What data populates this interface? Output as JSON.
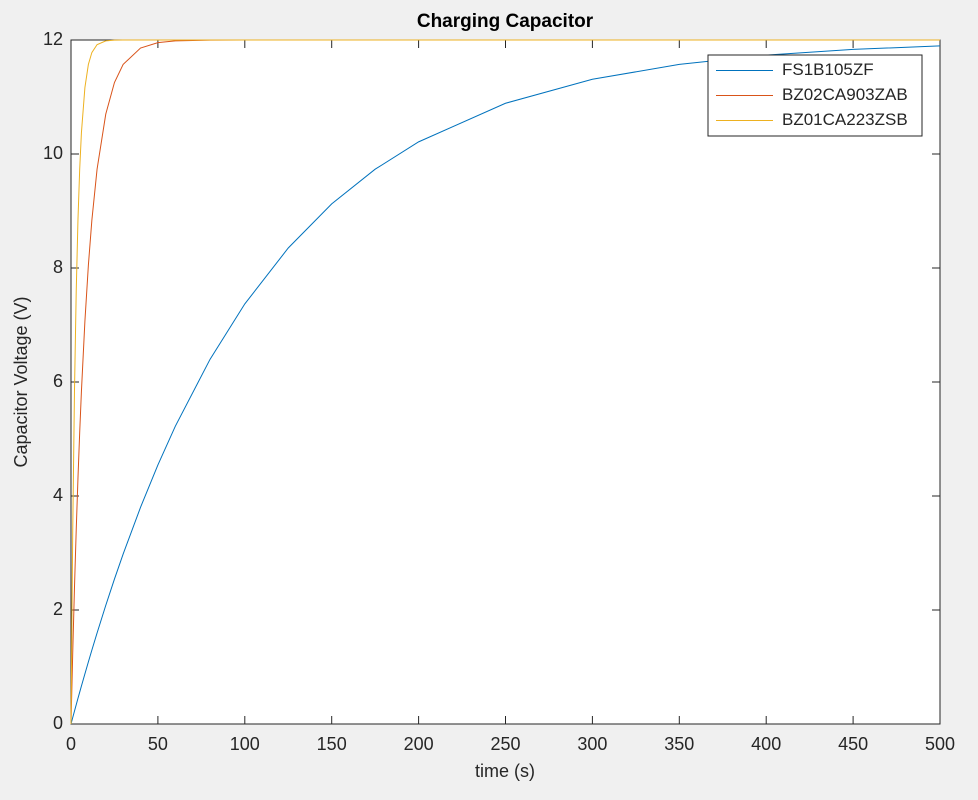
{
  "chart_data": {
    "type": "line",
    "title": "Charging Capacitor",
    "xlabel": "time (s)",
    "ylabel": "Capacitor Voltage (V)",
    "x": [
      0,
      1,
      2,
      3,
      4,
      5,
      6,
      8,
      10,
      12,
      15,
      20,
      25,
      30,
      40,
      50,
      60,
      80,
      100,
      125,
      150,
      175,
      200,
      250,
      300,
      350,
      400,
      450,
      500
    ],
    "series": [
      {
        "name": "FS1B105ZF",
        "color": "#0072bd",
        "values": [
          0,
          0.114,
          0.226,
          0.338,
          0.449,
          0.558,
          0.667,
          0.88,
          1.09,
          1.296,
          1.597,
          2.081,
          2.543,
          2.982,
          3.801,
          4.545,
          5.223,
          6.398,
          7.37,
          8.351,
          9.125,
          9.733,
          10.213,
          10.89,
          11.311,
          11.572,
          11.735,
          11.835,
          11.897
        ]
      },
      {
        "name": "BZ02CA903ZAB",
        "color": "#d95319",
        "values": [
          0,
          1.262,
          2.392,
          3.402,
          4.306,
          5.114,
          5.839,
          7.067,
          8.05,
          8.837,
          9.733,
          10.699,
          11.254,
          11.572,
          11.859,
          11.954,
          11.985,
          11.998,
          12,
          12,
          12,
          12,
          12,
          12,
          12,
          12,
          12,
          12,
          12
        ]
      },
      {
        "name": "BZ01CA223ZSB",
        "color": "#edb120",
        "values": [
          0,
          3.402,
          5.839,
          7.585,
          8.837,
          9.733,
          10.376,
          11.166,
          11.572,
          11.78,
          11.919,
          11.985,
          11.997,
          12,
          12,
          12,
          12,
          12,
          12,
          12,
          12,
          12,
          12,
          12,
          12,
          12,
          12,
          12,
          12
        ]
      }
    ],
    "xlim": [
      0,
      500
    ],
    "xticks": [
      0,
      50,
      100,
      150,
      200,
      250,
      300,
      350,
      400,
      450,
      500
    ],
    "ylim": [
      0,
      12
    ],
    "yticks": [
      0,
      2,
      4,
      6,
      8,
      10,
      12
    ],
    "grid": false,
    "legend": "northeast"
  }
}
